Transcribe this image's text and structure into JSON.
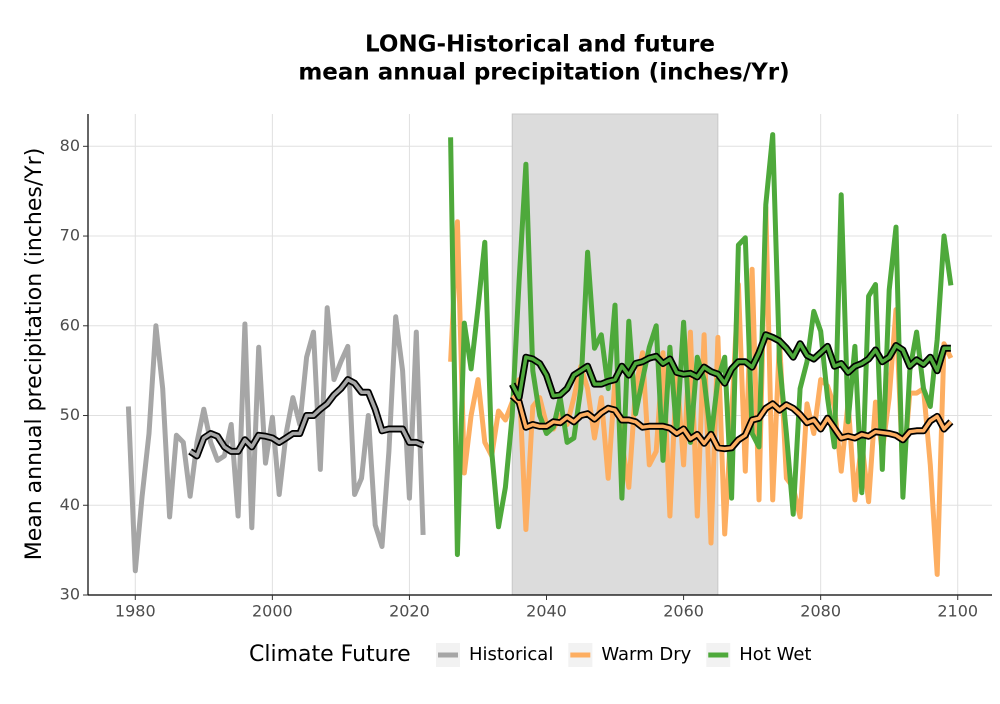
{
  "chart_data": {
    "type": "line",
    "title": [
      "LONG-Historical and future",
      "mean annual precipitation (inches/Yr)"
    ],
    "y_label": "Mean annual precipitation (inches/Yr)",
    "legend_title": "Climate Future",
    "xlim": [
      1973.1,
      2105
    ],
    "ylim": [
      30,
      83.6
    ],
    "xticks": [
      1980,
      2000,
      2020,
      2040,
      2060,
      2080,
      2100
    ],
    "yticks": [
      30,
      40,
      50,
      60,
      70,
      80
    ],
    "grid": true,
    "legend": "bottom",
    "shaded_range": [
      2035,
      2065
    ],
    "shade_color": "#dcdcdc",
    "series": [
      {
        "name": "Historical",
        "color": "#a6a6a6",
        "x": [
          1979,
          1980,
          1981,
          1982,
          1983,
          1984,
          1985,
          1986,
          1987,
          1988,
          1989,
          1990,
          1991,
          1992,
          1993,
          1994,
          1995,
          1996,
          1997,
          1998,
          1999,
          2000,
          2001,
          2002,
          2003,
          2004,
          2005,
          2006,
          2007,
          2008,
          2009,
          2010,
          2011,
          2012,
          2013,
          2014,
          2015,
          2016,
          2017,
          2018,
          2019,
          2020,
          2021,
          2022
        ],
        "values": [
          51,
          32.7,
          41,
          48,
          60,
          53,
          38.7,
          47.8,
          47,
          41,
          47,
          50.7,
          47,
          45,
          45.5,
          49,
          38.8,
          60.2,
          37.5,
          57.6,
          44.7,
          49.8,
          41.2,
          48,
          52,
          49,
          56.5,
          59.3,
          44,
          62,
          54,
          56,
          57.7,
          41.2,
          43,
          50,
          37.8,
          35.4,
          46,
          61,
          55,
          40.8,
          59.3,
          36.7
        ],
        "trend": {
          "x": [
            1988,
            1989,
            1990,
            1991,
            1992,
            1993,
            1994,
            1995,
            1996,
            1997,
            1998,
            1999,
            2000,
            2001,
            2002,
            2003,
            2004,
            2005,
            2006,
            2007,
            2008,
            2009,
            2010,
            2011,
            2012,
            2013,
            2014,
            2015,
            2016,
            2017,
            2018,
            2019,
            2020,
            2021,
            2022
          ],
          "values": [
            46,
            45.5,
            47.5,
            48,
            47.7,
            46.5,
            46,
            46,
            47.3,
            46.5,
            47.8,
            47.7,
            47.5,
            47,
            47.5,
            48,
            48,
            50,
            50,
            50.7,
            51.3,
            52.3,
            53,
            54,
            53.6,
            52.6,
            52.6,
            50.7,
            48.3,
            48.5,
            48.5,
            48.5,
            47,
            47,
            46.7
          ]
        }
      },
      {
        "name": "Warm Dry",
        "color": "#fdae61",
        "x": [
          2026,
          2027,
          2028,
          2029,
          2030,
          2031,
          2032,
          2033,
          2034,
          2035,
          2036,
          2037,
          2038,
          2039,
          2040,
          2041,
          2042,
          2043,
          2044,
          2045,
          2046,
          2047,
          2048,
          2049,
          2050,
          2051,
          2052,
          2053,
          2054,
          2055,
          2056,
          2057,
          2058,
          2059,
          2060,
          2061,
          2062,
          2063,
          2064,
          2065,
          2066,
          2067,
          2068,
          2069,
          2070,
          2071,
          2072,
          2073,
          2074,
          2075,
          2076,
          2077,
          2078,
          2079,
          2080,
          2081,
          2082,
          2083,
          2084,
          2085,
          2086,
          2087,
          2088,
          2089,
          2090,
          2091,
          2092,
          2093,
          2094,
          2095,
          2096,
          2097,
          2098,
          2099
        ],
        "values": [
          56,
          71.6,
          43.6,
          50,
          54,
          47,
          45.5,
          50.5,
          49.5,
          51.5,
          54,
          37.3,
          51,
          52,
          49,
          48.5,
          50,
          49,
          52,
          55.5,
          53,
          47.5,
          52,
          43,
          54,
          47,
          42,
          53,
          57,
          44.5,
          46,
          57,
          38.8,
          55,
          44.5,
          59.3,
          38.8,
          59,
          35.8,
          58.7,
          36.8,
          50,
          64.6,
          43.8,
          66.3,
          40.6,
          73.2,
          40.6,
          58.5,
          43,
          42,
          38.7,
          51.3,
          48,
          54,
          53.3,
          51,
          43.8,
          51.5,
          40.6,
          47,
          40.4,
          51.5,
          46,
          52,
          61.8,
          43.4,
          52.5,
          52.5,
          53,
          44.5,
          32.3,
          58,
          56.4
        ],
        "trend": {
          "x": [
            2035,
            2036,
            2037,
            2038,
            2039,
            2040,
            2041,
            2042,
            2043,
            2044,
            2045,
            2046,
            2047,
            2048,
            2049,
            2050,
            2051,
            2052,
            2053,
            2054,
            2055,
            2056,
            2057,
            2058,
            2059,
            2060,
            2061,
            2062,
            2063,
            2064,
            2065,
            2066,
            2067,
            2068,
            2069,
            2070,
            2071,
            2072,
            2073,
            2074,
            2075,
            2076,
            2077,
            2078,
            2079,
            2080,
            2081,
            2082,
            2083,
            2084,
            2085,
            2086,
            2087,
            2088,
            2089,
            2090,
            2091,
            2092,
            2093,
            2094,
            2095,
            2096,
            2097,
            2098,
            2099
          ],
          "values": [
            52.2,
            51.5,
            48.7,
            49,
            48.8,
            48.8,
            49.3,
            49.2,
            49.8,
            49.3,
            50,
            50.2,
            49.6,
            50.3,
            50.8,
            50.6,
            49.5,
            49.5,
            49.3,
            48.7,
            48.8,
            48.8,
            48.8,
            48.6,
            48,
            48.5,
            47.4,
            47.9,
            46.9,
            47.9,
            46.4,
            46.3,
            46.4,
            47.3,
            47.8,
            49.5,
            49.7,
            50.8,
            51.3,
            50.6,
            51.2,
            50.8,
            50.1,
            49.2,
            49.5,
            48.5,
            49.7,
            48.6,
            47.5,
            47.7,
            47.5,
            47.9,
            47.7,
            48.2,
            48.1,
            48,
            47.8,
            47.3,
            48.2,
            48.3,
            48.3,
            49.4,
            49.9,
            48.5,
            49.3
          ]
        }
      },
      {
        "name": "Hot Wet",
        "color": "#4ea93b",
        "x": [
          2026,
          2027,
          2028,
          2029,
          2030,
          2031,
          2032,
          2033,
          2034,
          2035,
          2036,
          2037,
          2038,
          2039,
          2040,
          2041,
          2042,
          2043,
          2044,
          2045,
          2046,
          2047,
          2048,
          2049,
          2050,
          2051,
          2052,
          2053,
          2054,
          2055,
          2056,
          2057,
          2058,
          2059,
          2060,
          2061,
          2062,
          2063,
          2064,
          2065,
          2066,
          2067,
          2068,
          2069,
          2070,
          2071,
          2072,
          2073,
          2074,
          2075,
          2076,
          2077,
          2078,
          2079,
          2080,
          2081,
          2082,
          2083,
          2084,
          2085,
          2086,
          2087,
          2088,
          2089,
          2090,
          2091,
          2092,
          2093,
          2094,
          2095,
          2096,
          2097,
          2098,
          2099
        ],
        "values": [
          81,
          34.5,
          60.3,
          55.2,
          62,
          69.3,
          46,
          37.6,
          42,
          50,
          65,
          78,
          55,
          50,
          48,
          48.7,
          52,
          47,
          47.5,
          53,
          68.2,
          57.5,
          59,
          53,
          62.3,
          40.8,
          60.5,
          50.2,
          54,
          57.6,
          60,
          45,
          57.6,
          48,
          60.4,
          47,
          56.5,
          54,
          47.5,
          54,
          56.5,
          40.8,
          69,
          69.8,
          48,
          46.5,
          73.5,
          81.3,
          56,
          48,
          39,
          53,
          56,
          61.6,
          59.4,
          52,
          46.5,
          74.6,
          49.3,
          57.7,
          41.4,
          63.3,
          64.6,
          44,
          64,
          71,
          40.9,
          55,
          59.3,
          53,
          51,
          58.5,
          70,
          64.5
        ],
        "trend": {
          "x": [
            2035,
            2036,
            2037,
            2038,
            2039,
            2040,
            2041,
            2042,
            2043,
            2044,
            2045,
            2046,
            2047,
            2048,
            2049,
            2050,
            2051,
            2052,
            2053,
            2054,
            2055,
            2056,
            2057,
            2058,
            2059,
            2060,
            2061,
            2062,
            2063,
            2064,
            2065,
            2066,
            2067,
            2068,
            2069,
            2070,
            2071,
            2072,
            2073,
            2074,
            2075,
            2076,
            2077,
            2078,
            2079,
            2080,
            2081,
            2082,
            2083,
            2084,
            2085,
            2086,
            2087,
            2088,
            2089,
            2090,
            2091,
            2092,
            2093,
            2094,
            2095,
            2096,
            2097,
            2098,
            2099
          ],
          "values": [
            53.5,
            52,
            56.5,
            56.3,
            55.8,
            54.5,
            52.2,
            52.3,
            53,
            54.5,
            55,
            55.5,
            53.5,
            53.5,
            53.8,
            54,
            55.5,
            54.5,
            55.8,
            56,
            56.4,
            56.6,
            55.8,
            56.3,
            54.8,
            54.6,
            54.7,
            54.3,
            55.4,
            54.9,
            54.6,
            53.6,
            55.2,
            56,
            56,
            55.4,
            57,
            59,
            58.7,
            58.3,
            57.5,
            56.5,
            58,
            56.7,
            56.3,
            57,
            57.7,
            55.5,
            55.8,
            54.8,
            55.5,
            55.8,
            56.3,
            57.3,
            56,
            56.5,
            57.8,
            57.3,
            55.5,
            56.2,
            55.7,
            56.5,
            55,
            57.5,
            57.5
          ]
        }
      }
    ]
  }
}
